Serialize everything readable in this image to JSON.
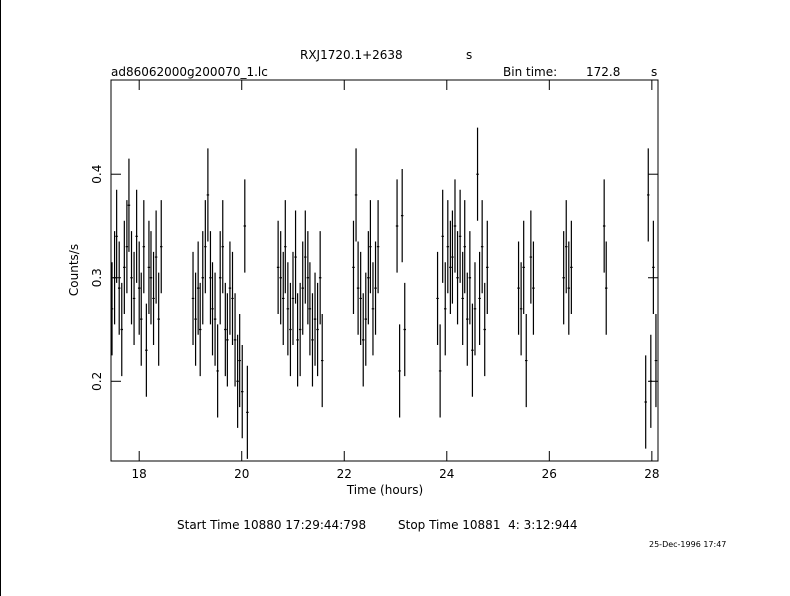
{
  "chart_data": {
    "type": "errorbar",
    "title": "RXJ1720.1+2638",
    "title_unit": "s",
    "file_label": "ad86062000g200070_1.lc",
    "bin_label": "Bin time:",
    "bin_time": 172.8,
    "bin_unit": "s",
    "xlabel": "Time (hours)",
    "ylabel": "Counts/s",
    "start_time": "Start Time 10880 17:29:44:798",
    "stop_time": "Stop Time 10881  4: 3:12:944",
    "date": "25-Dec-1996 17:47",
    "color": "#000000",
    "xlim": [
      17.45,
      28.12
    ],
    "ylim": [
      0.123,
      0.491
    ],
    "xticks": [
      18,
      20,
      22,
      24,
      26,
      28
    ],
    "yticks": [
      0.2,
      0.3,
      0.4
    ],
    "yerr": 0.045,
    "bin_halfwidth": 0.024,
    "series": [
      {
        "x": [
          17.47,
          17.52,
          17.56,
          17.61,
          17.66,
          17.71,
          17.76,
          17.8,
          17.85,
          17.9,
          17.95,
          18.0,
          18.04,
          18.09,
          18.14,
          18.19,
          18.23,
          18.28,
          18.33,
          18.38,
          18.43,
          19.05,
          19.1,
          19.15,
          19.19,
          19.24,
          19.29,
          19.34,
          19.39,
          19.43,
          19.48,
          19.53,
          19.58,
          19.63,
          19.68,
          19.72,
          19.77,
          19.82,
          19.87,
          19.92,
          19.96,
          20.01,
          20.06,
          20.11,
          20.71,
          20.76,
          20.81,
          20.85,
          20.9,
          20.95,
          21.0,
          21.05,
          21.09,
          21.14,
          21.19,
          21.24,
          21.29,
          21.33,
          21.38,
          21.43,
          21.48,
          21.53,
          21.57,
          22.18,
          22.23,
          22.27,
          22.32,
          22.37,
          22.42,
          22.47,
          22.51,
          22.56,
          22.61,
          22.66,
          23.03,
          23.08,
          23.13,
          23.18,
          23.82,
          23.87,
          23.92,
          23.97,
          24.02,
          24.07,
          24.11,
          24.16,
          24.21,
          24.26,
          24.31,
          24.35,
          24.4,
          24.45,
          24.5,
          24.55,
          24.6,
          24.64,
          24.69,
          24.74,
          24.79,
          25.4,
          25.45,
          25.5,
          25.55,
          25.64,
          25.69,
          26.28,
          26.33,
          26.38,
          26.43,
          27.07,
          27.11,
          27.88,
          27.93,
          27.98,
          28.03,
          28.08
        ],
        "values": [
          0.27,
          0.3,
          0.34,
          0.29,
          0.25,
          0.31,
          0.33,
          0.37,
          0.3,
          0.28,
          0.34,
          0.29,
          0.26,
          0.33,
          0.23,
          0.31,
          0.3,
          0.28,
          0.32,
          0.26,
          0.33,
          0.28,
          0.26,
          0.29,
          0.25,
          0.3,
          0.33,
          0.38,
          0.3,
          0.27,
          0.26,
          0.21,
          0.3,
          0.33,
          0.25,
          0.24,
          0.29,
          0.28,
          0.24,
          0.2,
          0.22,
          0.19,
          0.35,
          0.17,
          0.31,
          0.3,
          0.28,
          0.33,
          0.27,
          0.25,
          0.28,
          0.32,
          0.24,
          0.25,
          0.29,
          0.32,
          0.3,
          0.27,
          0.24,
          0.26,
          0.25,
          0.3,
          0.22,
          0.31,
          0.38,
          0.29,
          0.28,
          0.24,
          0.26,
          0.3,
          0.33,
          0.27,
          0.29,
          0.33,
          0.35,
          0.21,
          0.36,
          0.25,
          0.28,
          0.21,
          0.34,
          0.27,
          0.33,
          0.31,
          0.32,
          0.35,
          0.3,
          0.34,
          0.28,
          0.33,
          0.26,
          0.3,
          0.23,
          0.27,
          0.4,
          0.28,
          0.33,
          0.25,
          0.31,
          0.29,
          0.27,
          0.31,
          0.22,
          0.32,
          0.29,
          0.3,
          0.33,
          0.29,
          0.31,
          0.35,
          0.29,
          0.18,
          0.38,
          0.2,
          0.31,
          0.22
        ]
      }
    ]
  }
}
